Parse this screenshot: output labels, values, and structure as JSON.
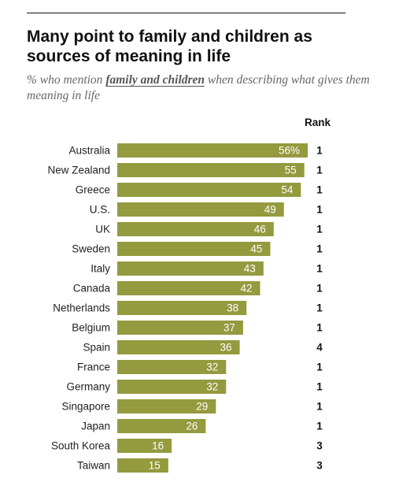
{
  "title": "Many point to family and children as sources of meaning in life",
  "subtitle_prefix": "% who mention ",
  "subtitle_highlight": "family and children",
  "subtitle_suffix": " when describing what gives them meaning in life",
  "rank_header": "Rank",
  "colors": {
    "bar": "#949a3e",
    "text": "#222222"
  },
  "chart_data": {
    "type": "bar",
    "orientation": "horizontal",
    "title": "Many point to family and children as sources of meaning in life",
    "subtitle": "% who mention family and children when describing what gives them meaning in life",
    "categories": [
      "Australia",
      "New Zealand",
      "Greece",
      "U.S.",
      "UK",
      "Sweden",
      "Italy",
      "Canada",
      "Netherlands",
      "Belgium",
      "Spain",
      "France",
      "Germany",
      "Singapore",
      "Japan",
      "South Korea",
      "Taiwan"
    ],
    "values": [
      56,
      55,
      54,
      49,
      46,
      45,
      43,
      42,
      38,
      37,
      36,
      32,
      32,
      29,
      26,
      16,
      15
    ],
    "value_labels": [
      "56%",
      "55",
      "54",
      "49",
      "46",
      "45",
      "43",
      "42",
      "38",
      "37",
      "36",
      "32",
      "32",
      "29",
      "26",
      "16",
      "15"
    ],
    "ranks": [
      "1",
      "1",
      "1",
      "1",
      "1",
      "1",
      "1",
      "1",
      "1",
      "1",
      "4",
      "1",
      "1",
      "1",
      "1",
      "3",
      "3"
    ],
    "rank_header": "Rank",
    "xlim": [
      0,
      56
    ]
  }
}
